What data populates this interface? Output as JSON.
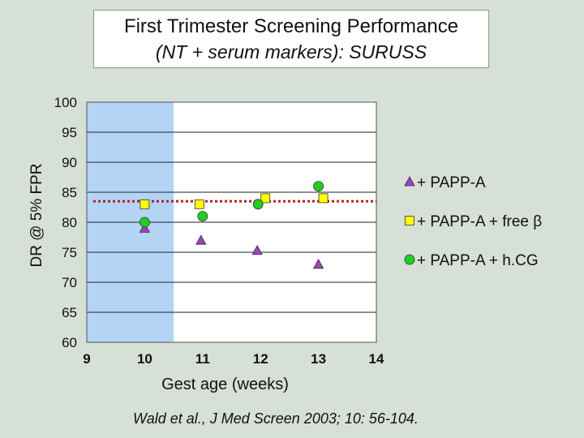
{
  "title": {
    "line1": "First Trimester Screening Performance",
    "line2": "(NT + serum markers): SURUSS"
  },
  "citation": "Wald et al., J Med Screen 2003; 10: 56-104.",
  "colors": {
    "background": "#d6e0d6",
    "highlight": "#b3d4f5",
    "reference_line": "#b02020",
    "papp_a": "#a040c0",
    "papp_a_free_beta": "#ffff00",
    "papp_a_hcg": "#1fd01f"
  },
  "chart_data": {
    "type": "scatter",
    "title": "First Trimester Screening Performance (NT + serum markers): SURUSS",
    "xlabel": "Gest age (weeks)",
    "ylabel": "DR @ 5% FPR",
    "xlim": [
      9,
      14
    ],
    "ylim": [
      60,
      100
    ],
    "x_ticks": [
      "9",
      "10",
      "11",
      "12",
      "13",
      "14"
    ],
    "y_ticks": [
      "60",
      "65",
      "70",
      "75",
      "80",
      "85",
      "90",
      "95",
      "100"
    ],
    "grid": "horizontal",
    "highlight_region": {
      "x_start": 9,
      "x_end": 10.5
    },
    "reference_line": {
      "y": 83.5,
      "style": "dotted"
    },
    "legend_position": "right",
    "series": [
      {
        "name": "+ PAPP-A",
        "marker": "triangle",
        "color": "#a040c0",
        "points": [
          [
            10,
            79
          ],
          [
            11,
            77
          ],
          [
            12,
            75.3
          ],
          [
            13,
            73
          ]
        ]
      },
      {
        "name": "+ PAPP-A + free β",
        "marker": "square",
        "color": "#ffff00",
        "points": [
          [
            10,
            83
          ],
          [
            11,
            83
          ],
          [
            12,
            84
          ],
          [
            13,
            84
          ]
        ]
      },
      {
        "name": "+ PAPP-A + h.CG",
        "marker": "circle",
        "color": "#1fd01f",
        "points": [
          [
            10,
            80
          ],
          [
            11,
            81
          ],
          [
            12,
            83
          ],
          [
            13,
            86
          ]
        ]
      }
    ]
  }
}
